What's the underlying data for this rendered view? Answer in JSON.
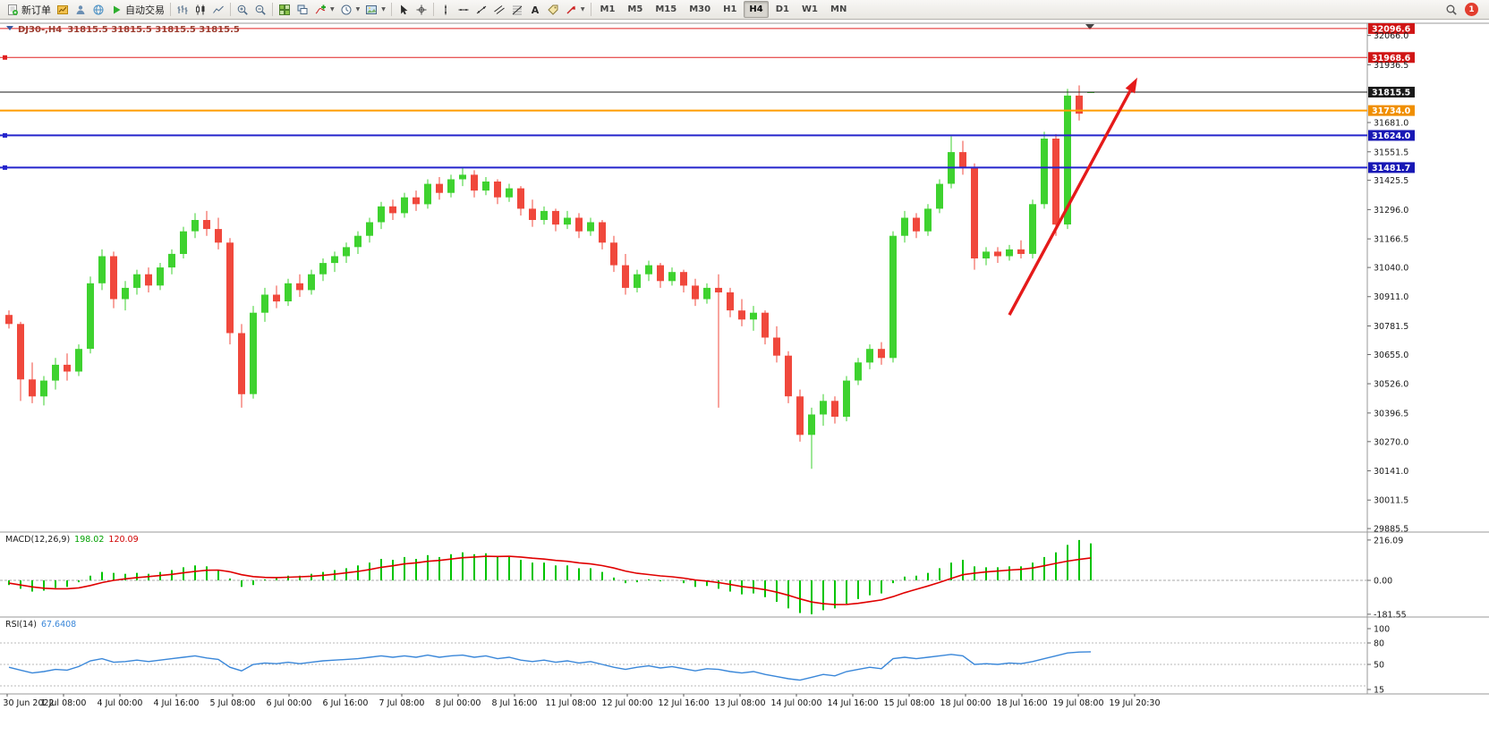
{
  "toolbar": {
    "items": [
      {
        "name": "new-order-button",
        "icon": "new-order-icon",
        "label": "新订单"
      },
      {
        "name": "charts-button",
        "icon": "charts-icon"
      },
      {
        "name": "profiles-button",
        "icon": "profiles-icon"
      },
      {
        "name": "community-button",
        "icon": "community-icon"
      },
      {
        "name": "auto-trading-button",
        "icon": "autotrading-play-icon",
        "label": "自动交易"
      },
      {
        "sep": true
      },
      {
        "name": "bar-chart-button",
        "icon": "bar-chart-icon"
      },
      {
        "name": "candlestick-chart-button",
        "icon": "candlestick-chart-icon"
      },
      {
        "name": "line-chart-button",
        "icon": "line-chart-icon"
      },
      {
        "sep": true
      },
      {
        "name": "zoom-in-button",
        "icon": "zoom-in-icon"
      },
      {
        "name": "zoom-out-button",
        "icon": "zoom-out-icon"
      },
      {
        "sep": true
      },
      {
        "name": "tile-windows-button",
        "icon": "tile-windows-icon"
      },
      {
        "name": "cascade-windows-button",
        "icon": "cascade-windows-icon"
      },
      {
        "name": "indicators-button",
        "icon": "indicators-icon",
        "caret": true
      },
      {
        "name": "periods-button",
        "icon": "periods-icon",
        "caret": true
      },
      {
        "name": "templates-button",
        "icon": "templates-icon",
        "caret": true
      },
      {
        "sep": true
      },
      {
        "name": "cursor-button",
        "icon": "cursor-icon"
      },
      {
        "name": "crosshair-button",
        "icon": "crosshair-icon"
      },
      {
        "sep": true
      },
      {
        "name": "vertical-line-button",
        "icon": "vline-icon"
      },
      {
        "name": "horizontal-line-button",
        "icon": "hline-icon"
      },
      {
        "name": "trendline-button",
        "icon": "trendline-icon"
      },
      {
        "name": "channel-button",
        "icon": "channel-icon"
      },
      {
        "name": "fibonacci-button",
        "icon": "fibo-icon"
      },
      {
        "name": "text-button",
        "icon": "text-icon"
      },
      {
        "name": "label-button",
        "icon": "label-icon"
      },
      {
        "name": "arrows-button",
        "icon": "arrows-icon",
        "caret": true
      },
      {
        "sep": true
      }
    ],
    "timeframes": [
      "M1",
      "M5",
      "M15",
      "M30",
      "H1",
      "H4",
      "D1",
      "W1",
      "MN"
    ],
    "active_timeframe": "H4",
    "notification_count": "1"
  },
  "chart": {
    "symbol_title": "DJ30-,H4",
    "ohlc_readout": "31815.5 31815.5 31815.5 31815.5",
    "colors": {
      "up": "#3ed22f",
      "down": "#f0483c",
      "macd_hist": "#00c400",
      "macd_signal": "#e00000",
      "rsi_line": "#3a87d9",
      "arrow": "#e51a1a",
      "title": "#9c3d30"
    },
    "price_axis_ticks": [
      "32066.0",
      "31936.5",
      "31681.0",
      "31551.5",
      "31425.5",
      "31296.0",
      "31166.5",
      "31040.0",
      "30911.0",
      "30781.5",
      "30655.0",
      "30526.0",
      "30396.5",
      "30270.0",
      "30141.0",
      "30011.5",
      "29885.5"
    ],
    "price_lines": [
      {
        "label": "32096.6",
        "price": 32096.6,
        "color": "#e02020",
        "badge": "#d01515",
        "width": 1,
        "handles": false
      },
      {
        "label": "31968.6",
        "price": 31968.6,
        "color": "#e02020",
        "badge": "#d01515",
        "width": 1,
        "handles": true
      },
      {
        "label": "31815.5",
        "price": 31815.5,
        "color": "#1a1a1a",
        "badge": "#1a1a1a",
        "width": 1,
        "handles": false,
        "current": true
      },
      {
        "label": "31734.0",
        "price": 31734.0,
        "color": "#ff9c00",
        "badge": "#f08f00",
        "width": 2,
        "handles": false
      },
      {
        "label": "31624.0",
        "price": 31624.0,
        "color": "#2525cc",
        "badge": "#1818b5",
        "width": 2,
        "handles": true
      },
      {
        "label": "31481.7",
        "price": 31481.7,
        "color": "#2525cc",
        "badge": "#1818b5",
        "width": 2,
        "handles": true
      }
    ],
    "time_axis": [
      "30 Jun 2022",
      "1 Jul 08:00",
      "4 Jul 00:00",
      "4 Jul 16:00",
      "5 Jul 08:00",
      "6 Jul 00:00",
      "6 Jul 16:00",
      "7 Jul 08:00",
      "8 Jul 00:00",
      "8 Jul 16:00",
      "11 Jul 08:00",
      "12 Jul 00:00",
      "12 Jul 16:00",
      "13 Jul 08:00",
      "14 Jul 00:00",
      "14 Jul 16:00",
      "15 Jul 08:00",
      "18 Jul 00:00",
      "18 Jul 16:00",
      "19 Jul 08:00",
      "19 Jul 20:30"
    ]
  },
  "macd": {
    "name": "MACD(12,26,9)",
    "value_main": "198.02",
    "value_signal": "120.09",
    "scale": [
      "216.09",
      "0.00",
      "-181.55"
    ]
  },
  "rsi": {
    "name": "RSI(14)",
    "value": "67.6408",
    "scale": [
      "100",
      "80",
      "50",
      "15"
    ],
    "levels": [
      80,
      50,
      20
    ]
  },
  "chart_data": {
    "type": "candlestick",
    "symbol": "DJ30-",
    "timeframe": "H4",
    "levels": [
      32096.6,
      31968.6,
      31815.5,
      31734.0,
      31624.0,
      31481.7
    ],
    "annotation_arrow": {
      "from_bar": 86,
      "from_price": 30830,
      "to_bar": 97,
      "to_price": 31880
    },
    "candles": [
      [
        30830,
        30850,
        30770,
        30790
      ],
      [
        30790,
        30800,
        30450,
        30545
      ],
      [
        30545,
        30620,
        30440,
        30470
      ],
      [
        30470,
        30560,
        30430,
        30540
      ],
      [
        30540,
        30640,
        30500,
        30610
      ],
      [
        30610,
        30660,
        30540,
        30580
      ],
      [
        30580,
        30700,
        30560,
        30680
      ],
      [
        30680,
        31000,
        30660,
        30970
      ],
      [
        30970,
        31120,
        30940,
        31090
      ],
      [
        31090,
        31110,
        30860,
        30900
      ],
      [
        30900,
        30980,
        30850,
        30950
      ],
      [
        30950,
        31030,
        30920,
        31010
      ],
      [
        31010,
        31040,
        30930,
        30960
      ],
      [
        30960,
        31060,
        30940,
        31040
      ],
      [
        31040,
        31120,
        31010,
        31100
      ],
      [
        31100,
        31220,
        31080,
        31200
      ],
      [
        31200,
        31280,
        31170,
        31250
      ],
      [
        31250,
        31290,
        31180,
        31210
      ],
      [
        31210,
        31260,
        31120,
        31150
      ],
      [
        31150,
        31170,
        30700,
        30750
      ],
      [
        30750,
        30790,
        30420,
        30480
      ],
      [
        30480,
        30870,
        30460,
        30840
      ],
      [
        30840,
        30950,
        30800,
        30920
      ],
      [
        30920,
        30960,
        30860,
        30890
      ],
      [
        30890,
        30990,
        30870,
        30970
      ],
      [
        30970,
        31010,
        30910,
        30940
      ],
      [
        30940,
        31030,
        30920,
        31010
      ],
      [
        31010,
        31080,
        30980,
        31060
      ],
      [
        31060,
        31110,
        31020,
        31090
      ],
      [
        31090,
        31150,
        31060,
        31130
      ],
      [
        31130,
        31200,
        31100,
        31180
      ],
      [
        31180,
        31260,
        31150,
        31240
      ],
      [
        31240,
        31330,
        31210,
        31310
      ],
      [
        31310,
        31340,
        31250,
        31280
      ],
      [
        31280,
        31370,
        31260,
        31350
      ],
      [
        31350,
        31380,
        31290,
        31320
      ],
      [
        31320,
        31430,
        31300,
        31410
      ],
      [
        31410,
        31440,
        31340,
        31370
      ],
      [
        31370,
        31450,
        31350,
        31430
      ],
      [
        31430,
        31480,
        31400,
        31450
      ],
      [
        31450,
        31470,
        31350,
        31380
      ],
      [
        31380,
        31440,
        31360,
        31420
      ],
      [
        31420,
        31430,
        31320,
        31350
      ],
      [
        31350,
        31410,
        31330,
        31390
      ],
      [
        31390,
        31400,
        31270,
        31300
      ],
      [
        31300,
        31340,
        31220,
        31250
      ],
      [
        31250,
        31310,
        31230,
        31290
      ],
      [
        31290,
        31300,
        31200,
        31230
      ],
      [
        31230,
        31290,
        31210,
        31260
      ],
      [
        31260,
        31280,
        31170,
        31200
      ],
      [
        31200,
        31260,
        31180,
        31240
      ],
      [
        31240,
        31250,
        31120,
        31150
      ],
      [
        31150,
        31180,
        31020,
        31050
      ],
      [
        31050,
        31100,
        30920,
        30950
      ],
      [
        30950,
        31030,
        30930,
        31010
      ],
      [
        31010,
        31070,
        30980,
        31050
      ],
      [
        31050,
        31060,
        30950,
        30980
      ],
      [
        30980,
        31040,
        30960,
        31020
      ],
      [
        31020,
        31030,
        30930,
        30960
      ],
      [
        30960,
        30990,
        30870,
        30900
      ],
      [
        30900,
        30970,
        30880,
        30950
      ],
      [
        30950,
        31010,
        30420,
        30930
      ],
      [
        30930,
        30950,
        30820,
        30850
      ],
      [
        30850,
        30900,
        30780,
        30810
      ],
      [
        30810,
        30870,
        30760,
        30840
      ],
      [
        30840,
        30850,
        30700,
        30730
      ],
      [
        30730,
        30780,
        30620,
        30650
      ],
      [
        30650,
        30670,
        30440,
        30470
      ],
      [
        30470,
        30500,
        30270,
        30300
      ],
      [
        30300,
        30420,
        30150,
        30390
      ],
      [
        30390,
        30480,
        30340,
        30450
      ],
      [
        30450,
        30470,
        30350,
        30380
      ],
      [
        30380,
        30560,
        30360,
        30540
      ],
      [
        30540,
        30640,
        30520,
        30620
      ],
      [
        30620,
        30700,
        30590,
        30680
      ],
      [
        30680,
        30710,
        30610,
        30640
      ],
      [
        30640,
        31200,
        30620,
        31180
      ],
      [
        31180,
        31290,
        31150,
        31260
      ],
      [
        31260,
        31280,
        31170,
        31200
      ],
      [
        31200,
        31320,
        31180,
        31300
      ],
      [
        31300,
        31430,
        31280,
        31410
      ],
      [
        31410,
        31620,
        31390,
        31550
      ],
      [
        31550,
        31600,
        31450,
        31480
      ],
      [
        31480,
        31500,
        31030,
        31080
      ],
      [
        31080,
        31130,
        31050,
        31110
      ],
      [
        31110,
        31130,
        31060,
        31090
      ],
      [
        31090,
        31140,
        31070,
        31120
      ],
      [
        31120,
        31160,
        31080,
        31100
      ],
      [
        31100,
        31340,
        31080,
        31320
      ],
      [
        31320,
        31640,
        31300,
        31610
      ],
      [
        31610,
        31630,
        31180,
        31230
      ],
      [
        31230,
        31830,
        31210,
        31800
      ],
      [
        31800,
        31845,
        31690,
        31720
      ],
      [
        31815.5,
        31815.5,
        31815.5,
        31815.5
      ]
    ],
    "macd_histogram": [
      -25,
      -45,
      -60,
      -55,
      -40,
      -35,
      -10,
      25,
      45,
      40,
      35,
      40,
      35,
      45,
      55,
      70,
      80,
      75,
      55,
      10,
      -35,
      -25,
      5,
      15,
      25,
      25,
      35,
      45,
      55,
      65,
      80,
      95,
      115,
      110,
      125,
      115,
      135,
      125,
      140,
      150,
      140,
      145,
      125,
      130,
      110,
      95,
      95,
      80,
      80,
      65,
      65,
      45,
      15,
      -15,
      -10,
      5,
      -5,
      0,
      -15,
      -35,
      -30,
      -45,
      -60,
      -75,
      -70,
      -90,
      -115,
      -150,
      -175,
      -181.55,
      -160,
      -150,
      -125,
      -100,
      -80,
      -70,
      -15,
      20,
      25,
      40,
      65,
      95,
      110,
      75,
      70,
      70,
      75,
      75,
      95,
      125,
      150,
      190,
      216.09,
      198.02
    ],
    "macd_signal": [
      -15,
      -25,
      -35,
      -42,
      -45,
      -45,
      -40,
      -28,
      -12,
      0,
      8,
      15,
      20,
      26,
      32,
      40,
      48,
      54,
      55,
      46,
      30,
      20,
      16,
      15,
      17,
      19,
      22,
      27,
      33,
      40,
      48,
      58,
      70,
      78,
      88,
      94,
      102,
      107,
      114,
      121,
      125,
      129,
      128,
      129,
      125,
      119,
      114,
      107,
      102,
      94,
      88,
      79,
      66,
      50,
      38,
      31,
      24,
      19,
      12,
      2,
      -4,
      -12,
      -22,
      -33,
      -40,
      -50,
      -63,
      -80,
      -99,
      -116,
      -125,
      -130,
      -129,
      -123,
      -114,
      -105,
      -87,
      -66,
      -48,
      -30,
      -11,
      10,
      30,
      39,
      45,
      50,
      55,
      59,
      66,
      78,
      91,
      103,
      112,
      120.09
    ],
    "rsi_values": [
      46,
      42,
      38,
      40,
      43,
      42,
      47,
      55,
      58,
      53,
      54,
      56,
      54,
      56,
      58,
      60,
      62,
      59,
      57,
      46,
      41,
      50,
      52,
      51,
      53,
      51,
      53,
      55,
      56,
      57,
      58,
      60,
      62,
      60,
      62,
      60,
      63,
      60,
      62,
      63,
      60,
      62,
      58,
      60,
      56,
      54,
      56,
      53,
      55,
      52,
      54,
      50,
      46,
      43,
      46,
      48,
      45,
      47,
      44,
      41,
      44,
      43,
      40,
      38,
      40,
      36,
      33,
      30,
      28,
      32,
      36,
      34,
      40,
      43,
      46,
      44,
      58,
      60,
      58,
      60,
      62,
      64,
      62,
      50,
      51,
      50,
      52,
      51,
      54,
      58,
      62,
      66,
      67.2,
      67.6408
    ]
  }
}
